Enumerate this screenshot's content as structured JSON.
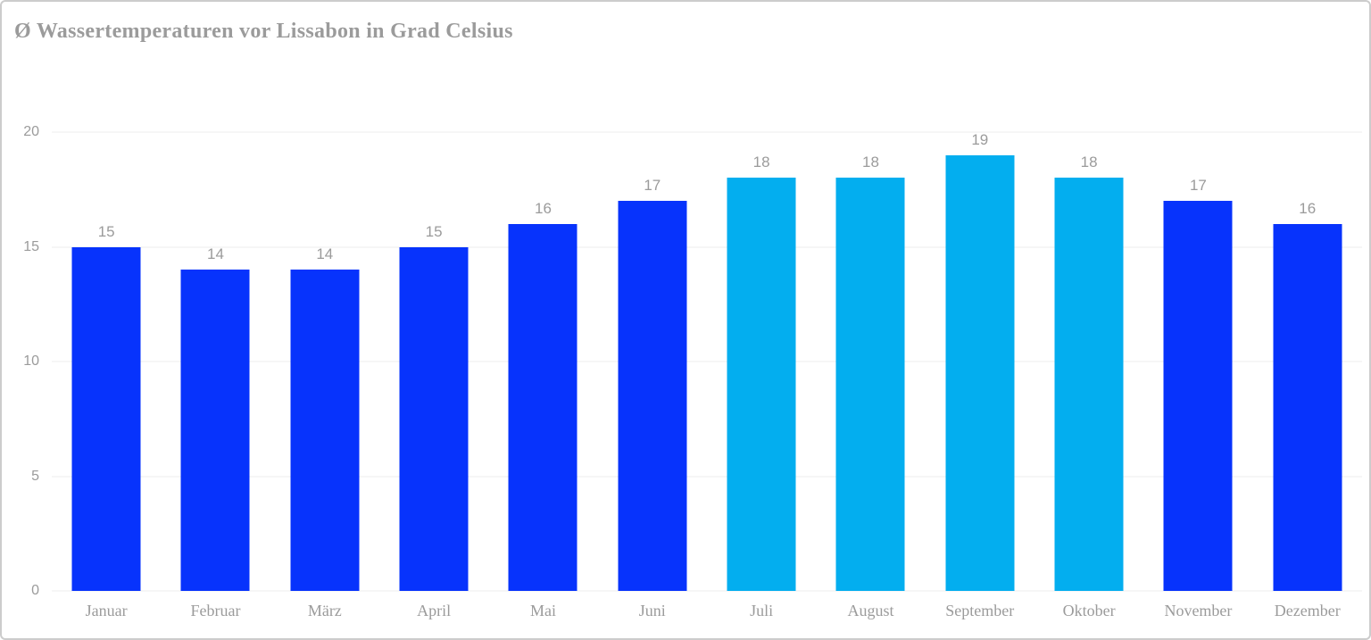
{
  "frame": {
    "background": "#ffffff",
    "border_color": "#cccccc"
  },
  "chart_data": {
    "type": "bar",
    "title": "Ø Wassertemperaturen vor Lissabon in Grad Celsius",
    "xlabel": "",
    "ylabel": "",
    "categories": [
      "Januar",
      "Februar",
      "März",
      "April",
      "Mai",
      "Juni",
      "Juli",
      "August",
      "September",
      "Oktober",
      "November",
      "Dezember"
    ],
    "values": [
      15,
      14,
      14,
      15,
      16,
      17,
      18,
      18,
      19,
      18,
      17,
      16
    ],
    "bar_colors": [
      "#0733fc",
      "#0733fc",
      "#0733fc",
      "#0733fc",
      "#0733fc",
      "#0733fc",
      "#03aeef",
      "#03aeef",
      "#03aeef",
      "#03aeef",
      "#0733fc",
      "#0733fc"
    ],
    "data_labels": [
      "15",
      "14",
      "14",
      "15",
      "16",
      "17",
      "18",
      "18",
      "19",
      "18",
      "17",
      "16"
    ],
    "ylim": [
      0,
      20
    ],
    "yticks": [
      0,
      5,
      10,
      15,
      20
    ],
    "grid": true,
    "legend": "none",
    "colors": {
      "bar_default": "#0733fc",
      "bar_highlight": "#03aeef",
      "text": "#9b9b9b",
      "gridline": "#ececec"
    },
    "highlighted_categories": [
      "Juli",
      "August",
      "September",
      "Oktober"
    ]
  }
}
